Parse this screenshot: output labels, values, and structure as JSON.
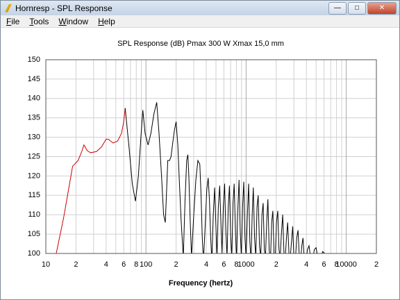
{
  "window": {
    "title": "Hornresp - SPL Response",
    "menu": [
      "File",
      "Tools",
      "Window",
      "Help"
    ]
  },
  "chart_data": {
    "type": "line",
    "title": "SPL Response (dB)   Pmax 300 W   Xmax 15,0 mm",
    "xlabel": "Frequency (hertz)",
    "xscale": "log",
    "xlim": [
      10,
      20000
    ],
    "ylim": [
      100,
      150
    ],
    "yticks": [
      100,
      105,
      110,
      115,
      120,
      125,
      130,
      135,
      140,
      145,
      150
    ],
    "xticks": [
      10,
      {
        "value": 20,
        "label": "2"
      },
      {
        "value": 40,
        "label": "4"
      },
      {
        "value": 60,
        "label": "6"
      },
      {
        "value": 80,
        "label": "8"
      },
      100,
      {
        "value": 200,
        "label": "2"
      },
      {
        "value": 400,
        "label": "4"
      },
      {
        "value": 600,
        "label": "6"
      },
      {
        "value": 800,
        "label": "8"
      },
      1000,
      {
        "value": 2000,
        "label": "2"
      },
      {
        "value": 4000,
        "label": "4"
      },
      {
        "value": 6000,
        "label": "6"
      },
      {
        "value": 8000,
        "label": "8"
      },
      10000,
      {
        "value": 20000,
        "label": "2"
      }
    ],
    "xminor": [
      30,
      50,
      70,
      90,
      300,
      500,
      700,
      900,
      3000,
      5000,
      7000,
      9000
    ],
    "grid": true,
    "series": [
      {
        "color": "#cc0000",
        "x": [
          12.7,
          15,
          17,
          18.5,
          21,
          23,
          24,
          26,
          28,
          32,
          36,
          40,
          42,
          47,
          52,
          57,
          60,
          62
        ],
        "values": [
          100,
          109,
          117,
          122.5,
          124,
          126.5,
          128,
          126.5,
          126,
          126.3,
          127.5,
          129.5,
          129.5,
          128.5,
          129,
          131,
          134,
          137.5
        ]
      },
      {
        "color": "#000000",
        "x": [
          62,
          68,
          73,
          78.5,
          84,
          89,
          93,
          98,
          105,
          112,
          120,
          128,
          135,
          143,
          150,
          156,
          160,
          165,
          172,
          178,
          186,
          193,
          200,
          208,
          216,
          225,
          236,
          245,
          255,
          262,
          268,
          277,
          285,
          300,
          315,
          330,
          345,
          355,
          365,
          375,
          390,
          405,
          418,
          430,
          443,
          455,
          470,
          485,
          498,
          512,
          528,
          545,
          560,
          575,
          592,
          610,
          627,
          645,
          663,
          682,
          700,
          720,
          740,
          760,
          782,
          803,
          826,
          850,
          873,
          897,
          922,
          948,
          974,
          1000,
          1030,
          1060,
          1090,
          1120,
          1150,
          1180,
          1215,
          1250,
          1285,
          1320,
          1360,
          1400,
          1440,
          1480,
          1520,
          1560,
          1605,
          1650,
          1700,
          1750,
          1800,
          1850,
          1900,
          1950,
          2010,
          2070,
          2130,
          2190,
          2250,
          2320,
          2390,
          2460,
          2530,
          2600,
          2680,
          2760,
          2840,
          2920,
          3000,
          3100,
          3200,
          3300,
          3400,
          3500,
          3600,
          3700,
          3800,
          3950,
          4100,
          4250,
          4400,
          4600,
          4800,
          5000,
          5200,
          5500,
          5800,
          6000,
          6300
        ],
        "values": [
          137.5,
          127,
          118,
          113.5,
          120,
          130,
          137,
          131,
          128,
          131,
          136,
          139,
          131,
          120,
          110,
          108,
          115,
          124,
          124,
          125,
          129,
          132,
          134,
          128,
          118,
          108,
          99,
          113,
          124,
          125.5,
          120,
          108,
          99,
          110,
          119,
          124,
          123,
          115,
          104,
          98,
          107,
          116.5,
          119.5,
          114,
          104,
          98,
          110,
          117,
          108,
          99,
          112,
          117.5,
          108,
          100,
          112,
          118,
          106,
          99,
          112,
          117.5,
          105,
          99,
          113,
          118,
          106,
          98,
          111,
          119,
          106,
          99,
          112,
          118.5,
          104,
          99,
          110,
          118,
          103,
          98,
          110,
          117,
          104,
          99,
          112,
          115,
          102,
          99,
          110,
          113,
          101,
          99,
          108,
          114,
          101,
          98,
          108,
          111,
          100,
          98,
          108,
          111,
          101,
          99,
          105,
          110,
          100,
          99,
          104,
          108,
          100,
          99,
          103,
          107,
          99,
          98,
          104,
          106,
          99,
          98,
          102,
          104,
          99,
          98,
          101,
          102,
          99,
          98,
          101,
          101.5,
          99,
          98,
          100.5,
          100.2,
          99
        ]
      }
    ]
  }
}
